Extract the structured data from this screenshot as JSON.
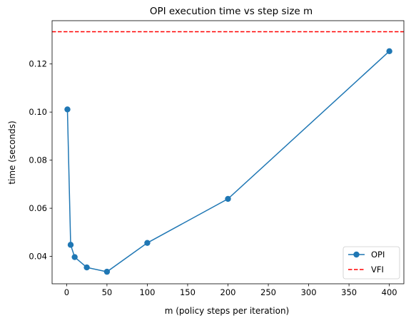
{
  "chart_data": {
    "type": "line",
    "title": "OPI execution time vs step size m",
    "xlabel": "m (policy steps per iteration)",
    "ylabel": "time (seconds)",
    "xlim": [
      -18,
      418
    ],
    "ylim": [
      0.0286,
      0.138
    ],
    "xticks": [
      0,
      50,
      100,
      150,
      200,
      250,
      300,
      350,
      400
    ],
    "xtick_labels": [
      "0",
      "50",
      "100",
      "150",
      "200",
      "250",
      "300",
      "350",
      "400"
    ],
    "yticks": [
      0.04,
      0.06,
      0.08,
      0.1,
      0.12
    ],
    "ytick_labels": [
      "0.04",
      "0.06",
      "0.08",
      "0.10",
      "0.12"
    ],
    "grid": false,
    "legend_position": "bottom-right",
    "series": [
      {
        "name": "OPI",
        "style": "line-with-markers",
        "color": "#1f77b4",
        "x": [
          1,
          5,
          10,
          25,
          50,
          100,
          200,
          400
        ],
        "y": [
          0.1011,
          0.0448,
          0.0397,
          0.0354,
          0.0336,
          0.0456,
          0.0639,
          0.1253
        ]
      },
      {
        "name": "VFI",
        "style": "dashed-horizontal",
        "color": "#ff0000",
        "y": 0.1334
      }
    ]
  }
}
